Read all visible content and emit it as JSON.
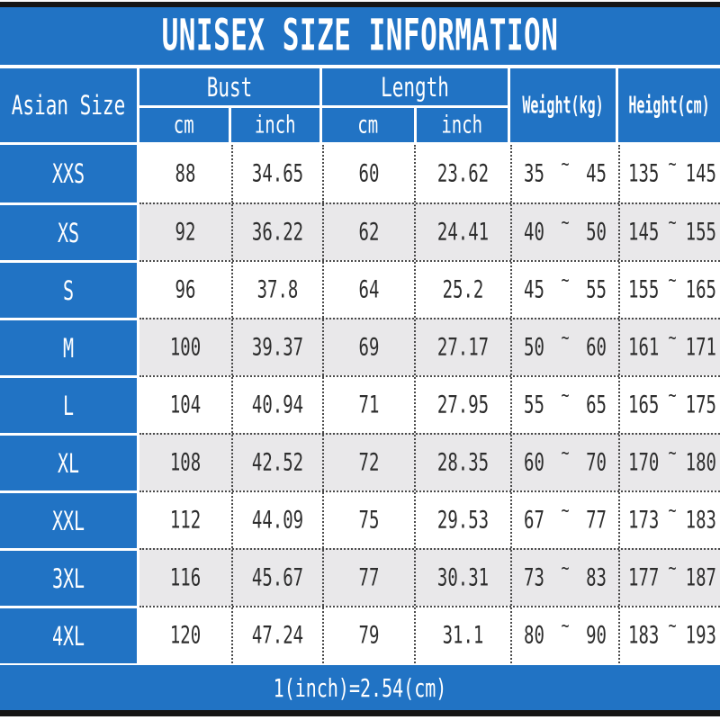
{
  "title": "UNISEX SIZE INFORMATION",
  "footer_note": "1(inch)=2.54(cm)",
  "range_separator": "~",
  "colors": {
    "accent_blue": "#2173c4",
    "row_alt_gray": "#e9e8ea",
    "grid_line": "#4a4a4a",
    "frame_black": "#151515",
    "text_dark": "#2d2d2d",
    "text_white": "#ffffff"
  },
  "chart_data": {
    "type": "table",
    "title": "UNISEX SIZE INFORMATION",
    "corner_header": "Asian Size",
    "column_groups": [
      {
        "label": "Bust",
        "subs": [
          "cm",
          "inch"
        ]
      },
      {
        "label": "Length",
        "subs": [
          "cm",
          "inch"
        ]
      }
    ],
    "single_headers": [
      "Weight(kg)",
      "Height(cm)"
    ],
    "rows": [
      {
        "size": "XXS",
        "bust_cm": "88",
        "bust_inch": "34.65",
        "length_cm": "60",
        "length_inch": "23.62",
        "weight_kg": [
          "35",
          "45"
        ],
        "height_cm": [
          "135",
          "145"
        ]
      },
      {
        "size": "XS",
        "bust_cm": "92",
        "bust_inch": "36.22",
        "length_cm": "62",
        "length_inch": "24.41",
        "weight_kg": [
          "40",
          "50"
        ],
        "height_cm": [
          "145",
          "155"
        ]
      },
      {
        "size": "S",
        "bust_cm": "96",
        "bust_inch": "37.8",
        "length_cm": "64",
        "length_inch": "25.2",
        "weight_kg": [
          "45",
          "55"
        ],
        "height_cm": [
          "155",
          "165"
        ]
      },
      {
        "size": "M",
        "bust_cm": "100",
        "bust_inch": "39.37",
        "length_cm": "69",
        "length_inch": "27.17",
        "weight_kg": [
          "50",
          "60"
        ],
        "height_cm": [
          "161",
          "171"
        ]
      },
      {
        "size": "L",
        "bust_cm": "104",
        "bust_inch": "40.94",
        "length_cm": "71",
        "length_inch": "27.95",
        "weight_kg": [
          "55",
          "65"
        ],
        "height_cm": [
          "165",
          "175"
        ]
      },
      {
        "size": "XL",
        "bust_cm": "108",
        "bust_inch": "42.52",
        "length_cm": "72",
        "length_inch": "28.35",
        "weight_kg": [
          "60",
          "70"
        ],
        "height_cm": [
          "170",
          "180"
        ]
      },
      {
        "size": "XXL",
        "bust_cm": "112",
        "bust_inch": "44.09",
        "length_cm": "75",
        "length_inch": "29.53",
        "weight_kg": [
          "67",
          "77"
        ],
        "height_cm": [
          "173",
          "183"
        ]
      },
      {
        "size": "3XL",
        "bust_cm": "116",
        "bust_inch": "45.67",
        "length_cm": "77",
        "length_inch": "30.31",
        "weight_kg": [
          "73",
          "83"
        ],
        "height_cm": [
          "177",
          "187"
        ]
      },
      {
        "size": "4XL",
        "bust_cm": "120",
        "bust_inch": "47.24",
        "length_cm": "79",
        "length_inch": "31.1",
        "weight_kg": [
          "80",
          "90"
        ],
        "height_cm": [
          "183",
          "193"
        ]
      }
    ]
  }
}
